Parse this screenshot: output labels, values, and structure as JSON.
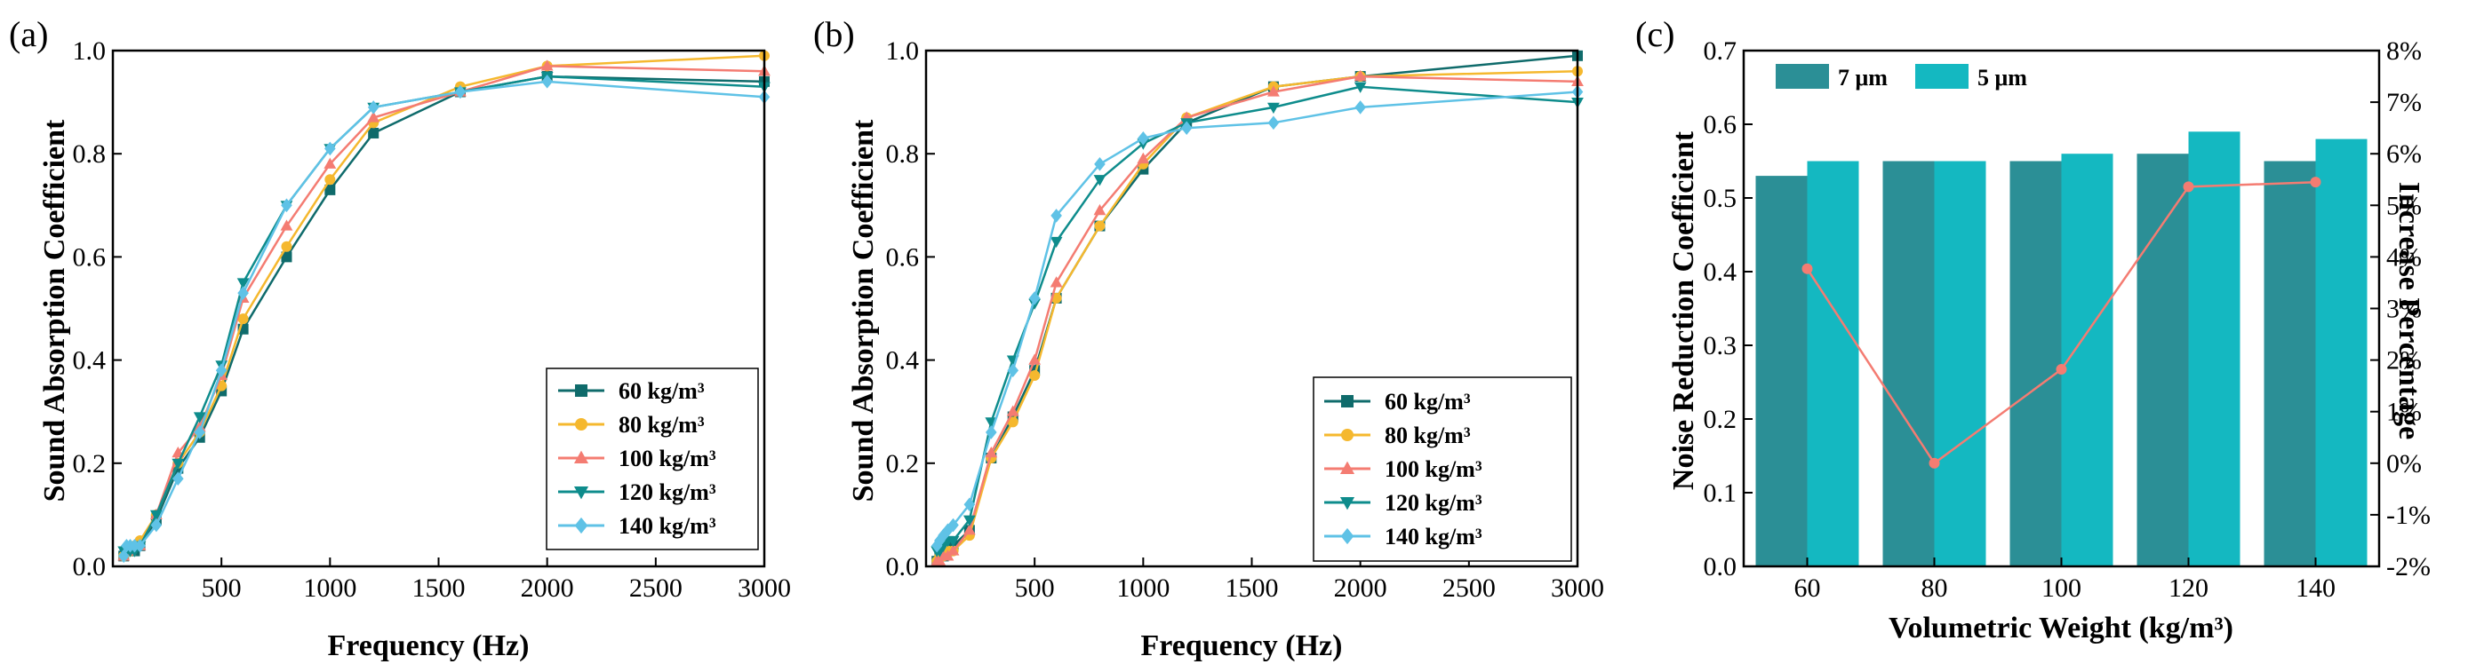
{
  "chart_data": [
    {
      "panel": "(a)",
      "type": "line",
      "xlabel": "Frequency (Hz)",
      "ylabel": "Sound Absorption Coefficient",
      "xlim": [
        0,
        3000
      ],
      "ylim": [
        0,
        1.0
      ],
      "xticks": [
        500,
        1000,
        1500,
        2000,
        2500,
        3000
      ],
      "xtick_labels": [
        "500",
        "1000",
        "1500",
        "2000",
        "2500",
        "3000"
      ],
      "yticks": [
        0,
        0.2,
        0.4,
        0.6,
        0.8,
        1.0
      ],
      "ytick_labels": [
        "0.0",
        "0.2",
        "0.4",
        "0.6",
        "0.8",
        "1.0"
      ],
      "x": [
        50,
        63,
        80,
        100,
        125,
        200,
        300,
        400,
        500,
        600,
        800,
        1000,
        1200,
        1600,
        2000,
        3000
      ],
      "series": [
        {
          "name": "60 kg/m³",
          "color": "#0f6b6b",
          "marker": "square",
          "values": [
            0.02,
            0.03,
            0.03,
            0.03,
            0.04,
            0.09,
            0.19,
            0.25,
            0.34,
            0.46,
            0.6,
            0.73,
            0.84,
            0.92,
            0.95,
            0.94
          ]
        },
        {
          "name": "80 kg/m³",
          "color": "#f5b82e",
          "marker": "circle",
          "values": [
            0.02,
            0.03,
            0.03,
            0.04,
            0.05,
            0.1,
            0.2,
            0.26,
            0.35,
            0.48,
            0.62,
            0.75,
            0.86,
            0.93,
            0.97,
            0.99
          ]
        },
        {
          "name": "100 kg/m³",
          "color": "#f47c72",
          "marker": "triangle-up",
          "values": [
            0.02,
            0.03,
            0.03,
            0.04,
            0.04,
            0.1,
            0.22,
            0.27,
            0.37,
            0.52,
            0.66,
            0.78,
            0.87,
            0.92,
            0.97,
            0.96
          ]
        },
        {
          "name": "120 kg/m³",
          "color": "#0e8c8c",
          "marker": "triangle-down",
          "values": [
            0.03,
            0.03,
            0.03,
            0.03,
            0.04,
            0.1,
            0.2,
            0.29,
            0.39,
            0.55,
            0.7,
            0.81,
            0.89,
            0.92,
            0.95,
            0.93
          ]
        },
        {
          "name": "140 kg/m³",
          "color": "#5fc2e6",
          "marker": "diamond",
          "values": [
            0.02,
            0.04,
            0.04,
            0.04,
            0.04,
            0.08,
            0.17,
            0.26,
            0.38,
            0.53,
            0.7,
            0.81,
            0.89,
            0.92,
            0.94,
            0.91
          ]
        }
      ]
    },
    {
      "panel": "(b)",
      "type": "line",
      "xlabel": "Frequency (Hz)",
      "ylabel": "Sound Absorption Coefficient",
      "xlim": [
        0,
        3000
      ],
      "ylim": [
        0,
        1.0
      ],
      "xticks": [
        500,
        1000,
        1500,
        2000,
        2500,
        3000
      ],
      "xtick_labels": [
        "500",
        "1000",
        "1500",
        "2000",
        "2500",
        "3000"
      ],
      "yticks": [
        0,
        0.2,
        0.4,
        0.6,
        0.8,
        1.0
      ],
      "ytick_labels": [
        "0.0",
        "0.2",
        "0.4",
        "0.6",
        "0.8",
        "1.0"
      ],
      "x": [
        50,
        63,
        80,
        100,
        125,
        200,
        300,
        400,
        500,
        600,
        800,
        1000,
        1200,
        1600,
        2000,
        3000
      ],
      "series": [
        {
          "name": "60 kg/m³",
          "color": "#0f6b6b",
          "marker": "square",
          "values": [
            0.01,
            0.02,
            0.02,
            0.03,
            0.04,
            0.07,
            0.21,
            0.29,
            0.38,
            0.52,
            0.66,
            0.77,
            0.86,
            0.93,
            0.95,
            0.99
          ]
        },
        {
          "name": "80 kg/m³",
          "color": "#f5b82e",
          "marker": "circle",
          "values": [
            0.01,
            0.02,
            0.02,
            0.03,
            0.03,
            0.06,
            0.21,
            0.28,
            0.37,
            0.52,
            0.66,
            0.78,
            0.87,
            0.93,
            0.95,
            0.96
          ]
        },
        {
          "name": "100 kg/m³",
          "color": "#f47c72",
          "marker": "triangle-up",
          "values": [
            0.01,
            0.01,
            0.02,
            0.02,
            0.03,
            0.07,
            0.22,
            0.3,
            0.4,
            0.55,
            0.69,
            0.79,
            0.87,
            0.92,
            0.95,
            0.94
          ]
        },
        {
          "name": "120 kg/m³",
          "color": "#0e8c8c",
          "marker": "triangle-down",
          "values": [
            0.03,
            0.03,
            0.04,
            0.05,
            0.05,
            0.09,
            0.28,
            0.4,
            0.51,
            0.63,
            0.75,
            0.82,
            0.86,
            0.89,
            0.93,
            0.9
          ]
        },
        {
          "name": "140 kg/m³",
          "color": "#5fc2e6",
          "marker": "diamond",
          "values": [
            0.04,
            0.05,
            0.06,
            0.07,
            0.08,
            0.12,
            0.26,
            0.38,
            0.52,
            0.68,
            0.78,
            0.83,
            0.85,
            0.86,
            0.89,
            0.92
          ]
        }
      ]
    },
    {
      "panel": "(c)",
      "type": "bar",
      "xlabel": "Volumetric Weight (kg/m³)",
      "ylabel": "Noise Reduction Coefficient",
      "y2label": "Increase Percentage",
      "categories": [
        "60",
        "80",
        "100",
        "120",
        "140"
      ],
      "ylim": [
        0,
        0.7
      ],
      "yticks": [
        0,
        0.1,
        0.2,
        0.3,
        0.4,
        0.5,
        0.6,
        0.7
      ],
      "ytick_labels": [
        "0.0",
        "0.1",
        "0.2",
        "0.3",
        "0.4",
        "0.5",
        "0.6",
        "0.7"
      ],
      "y2lim": [
        -2,
        8
      ],
      "y2ticks": [
        -2,
        -1,
        0,
        1,
        2,
        3,
        4,
        5,
        6,
        7,
        8
      ],
      "y2tick_labels": [
        "-2%",
        "-1%",
        "0%",
        "1%",
        "2%",
        "3%",
        "4%",
        "5%",
        "6%",
        "7%",
        "8%"
      ],
      "series": [
        {
          "name": "7 μm",
          "color": "#2b8f96",
          "values": [
            0.53,
            0.55,
            0.55,
            0.56,
            0.55
          ]
        },
        {
          "name": "5 μm",
          "color": "#14b8c1",
          "values": [
            0.55,
            0.55,
            0.56,
            0.59,
            0.58
          ]
        }
      ],
      "line_series": {
        "name": "Increase Percentage",
        "color": "#f47c72",
        "axis": "right",
        "values": [
          3.77,
          0.0,
          1.82,
          5.36,
          5.45
        ]
      }
    }
  ]
}
